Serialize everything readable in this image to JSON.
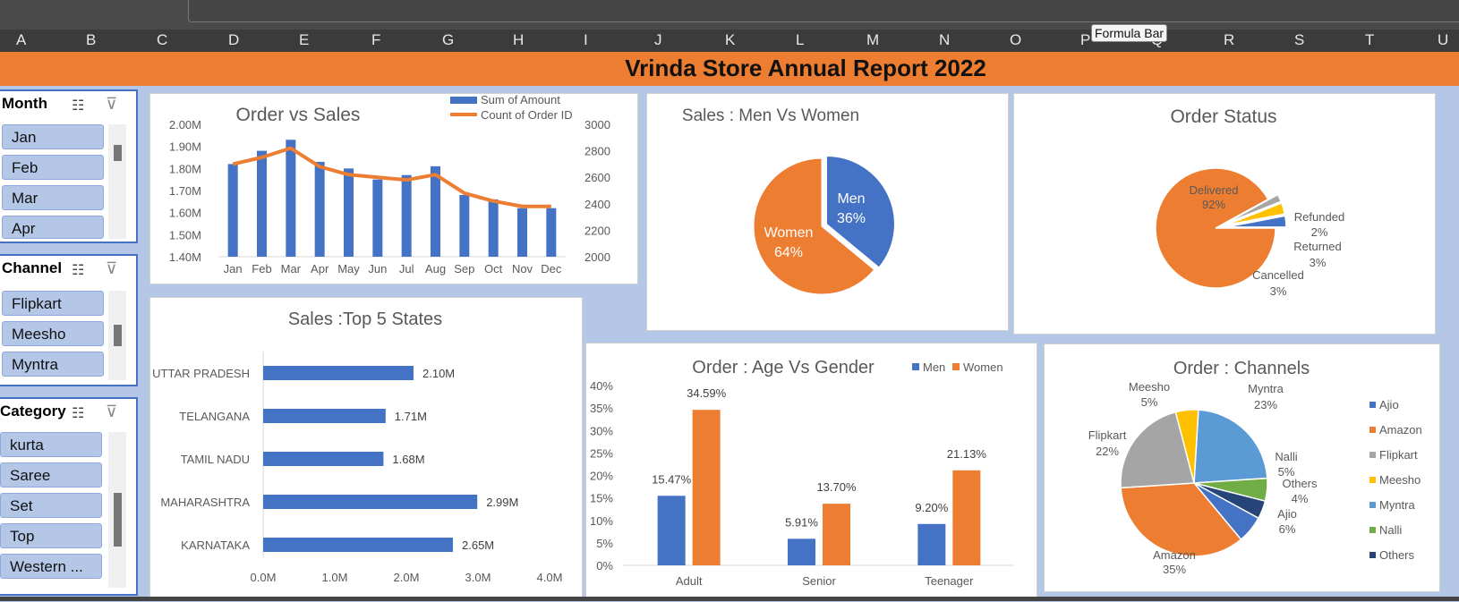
{
  "columns": [
    "A",
    "B",
    "C",
    "D",
    "E",
    "F",
    "G",
    "H",
    "I",
    "J",
    "K",
    "L",
    "M",
    "N",
    "O",
    "P",
    "Q",
    "R",
    "S",
    "T",
    "U"
  ],
  "tooltip": "Formula Bar",
  "title": "Vrinda Store Annual Report 2022",
  "slicers": {
    "month": {
      "label": "Month",
      "items": [
        "Jan",
        "Feb",
        "Mar",
        "Apr"
      ]
    },
    "channel": {
      "label": "Channel",
      "items": [
        "Flipkart",
        "Meesho",
        "Myntra"
      ]
    },
    "category": {
      "label": "Category",
      "items": [
        "kurta",
        "Saree",
        "Set",
        "Top",
        "Western ..."
      ]
    }
  },
  "colors": {
    "blue": "#4472c4",
    "orange": "#ed7d31",
    "gray": "#a5a5a5",
    "yellow": "#ffc000",
    "lightblue": "#5b9bd5",
    "green": "#70ad47",
    "navy": "#264478"
  },
  "chart_data": [
    {
      "type": "bar+line",
      "title": "Order vs Sales",
      "categories": [
        "Jan",
        "Feb",
        "Mar",
        "Apr",
        "May",
        "Jun",
        "Jul",
        "Aug",
        "Sep",
        "Oct",
        "Nov",
        "Dec"
      ],
      "series": [
        {
          "name": "Sum of Amount",
          "type": "bar",
          "axis": "left",
          "values": [
            1.82,
            1.88,
            1.93,
            1.83,
            1.8,
            1.75,
            1.77,
            1.81,
            1.68,
            1.66,
            1.62,
            1.62
          ]
        },
        {
          "name": "Count of Order ID",
          "type": "line",
          "axis": "right",
          "values": [
            2700,
            2750,
            2820,
            2680,
            2620,
            2600,
            2580,
            2620,
            2480,
            2420,
            2380,
            2380
          ]
        }
      ],
      "ylim": [
        1.4,
        2.0
      ],
      "y_ticks": [
        "2.00M",
        "1.90M",
        "1.80M",
        "1.70M",
        "1.60M",
        "1.50M",
        "1.40M"
      ],
      "y2lim": [
        2000,
        3000
      ],
      "y2_ticks": [
        "3000",
        "2800",
        "2600",
        "2400",
        "2200",
        "2000"
      ],
      "legend": "top-right"
    },
    {
      "type": "pie",
      "title": "Sales : Men Vs Women",
      "slices": [
        {
          "label": "Men",
          "value": 36,
          "text": "36%"
        },
        {
          "label": "Women",
          "value": 64,
          "text": "64%"
        }
      ]
    },
    {
      "type": "pie",
      "title": "Order Status",
      "slices": [
        {
          "label": "Delivered",
          "value": 92,
          "text": "92%"
        },
        {
          "label": "Refunded",
          "value": 2,
          "text": "2%"
        },
        {
          "label": "Returned",
          "value": 3,
          "text": "3%"
        },
        {
          "label": "Cancelled",
          "value": 3,
          "text": "3%"
        }
      ]
    },
    {
      "type": "bar",
      "orientation": "horizontal",
      "title": "Sales :Top 5 States",
      "categories": [
        "UTTAR PRADESH",
        "TELANGANA",
        "TAMIL NADU",
        "MAHARASHTRA",
        "KARNATAKA"
      ],
      "values": [
        2.1,
        1.71,
        1.68,
        2.99,
        2.65
      ],
      "labels": [
        "2.10M",
        "1.71M",
        "1.68M",
        "2.99M",
        "2.65M"
      ],
      "xlim": [
        0,
        4
      ],
      "x_ticks": [
        "0.0M",
        "1.0M",
        "2.0M",
        "3.0M",
        "4.0M"
      ]
    },
    {
      "type": "bar",
      "title": "Order : Age Vs Gender",
      "categories": [
        "Adult",
        "Senior",
        "Teenager"
      ],
      "series": [
        {
          "name": "Men",
          "values": [
            15.47,
            5.91,
            9.2
          ],
          "labels": [
            "15.47%",
            "5.91%",
            "9.20%"
          ]
        },
        {
          "name": "Women",
          "values": [
            34.59,
            13.7,
            21.13
          ],
          "labels": [
            "34.59%",
            "13.70%",
            "21.13%"
          ]
        }
      ],
      "ylim": [
        0,
        40
      ],
      "y_ticks": [
        "40%",
        "35%",
        "30%",
        "25%",
        "20%",
        "15%",
        "10%",
        "5%",
        "0%"
      ],
      "legend": "top-right"
    },
    {
      "type": "pie",
      "title": "Order : Channels",
      "slices": [
        {
          "label": "Myntra",
          "value": 23,
          "text": "23%"
        },
        {
          "label": "Nalli",
          "value": 5,
          "text": "5%"
        },
        {
          "label": "Others",
          "value": 4,
          "text": "4%"
        },
        {
          "label": "Ajio",
          "value": 6,
          "text": "6%"
        },
        {
          "label": "Amazon",
          "value": 35,
          "text": "35%"
        },
        {
          "label": "Flipkart",
          "value": 22,
          "text": "22%"
        },
        {
          "label": "Meesho",
          "value": 5,
          "text": "5%"
        }
      ],
      "legend_items": [
        "Ajio",
        "Amazon",
        "Flipkart",
        "Meesho",
        "Myntra",
        "Nalli",
        "Others"
      ],
      "legend": "right"
    }
  ]
}
